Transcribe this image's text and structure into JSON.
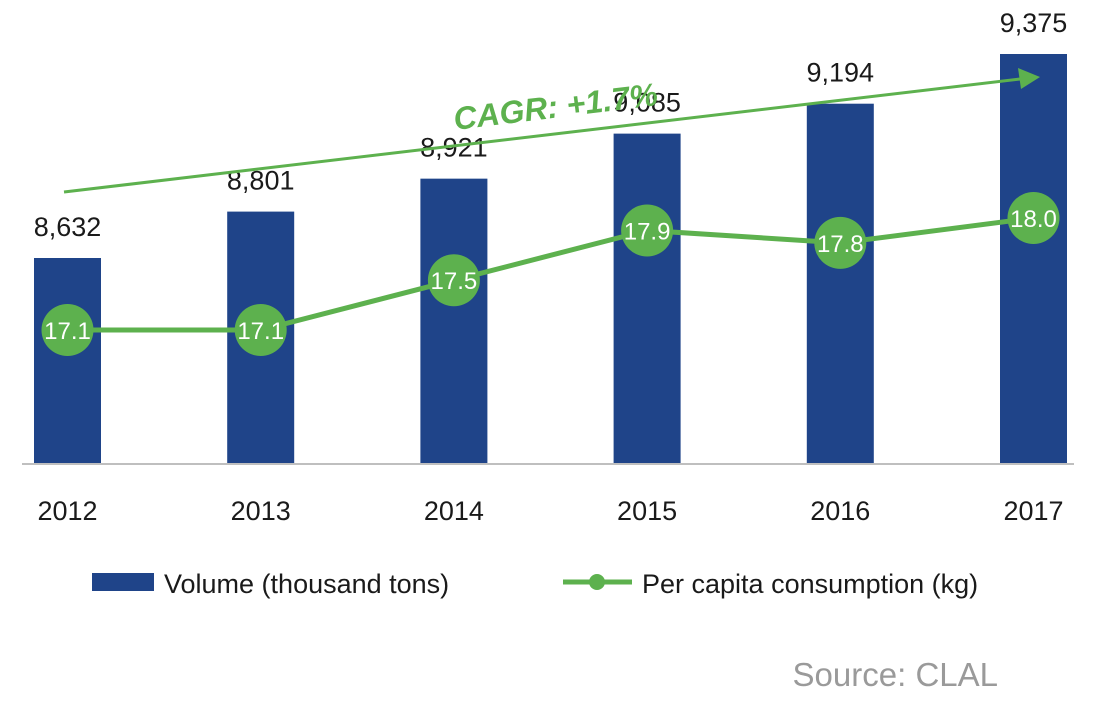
{
  "chart_data": {
    "type": "bar",
    "categories": [
      "2012",
      "2013",
      "2014",
      "2015",
      "2016",
      "2017"
    ],
    "series": [
      {
        "name": "Volume (thousand tons)",
        "type": "bar",
        "values": [
          8632,
          8801,
          8921,
          9085,
          9194,
          9375
        ],
        "labels": [
          "8,632",
          "8,801",
          "8,921",
          "9,085",
          "9,194",
          "9,375"
        ],
        "color": "#1f4489"
      },
      {
        "name": "Per capita consumption (kg)",
        "type": "line",
        "values": [
          17.1,
          17.1,
          17.5,
          17.9,
          17.8,
          18.0
        ],
        "labels": [
          "17.1",
          "17.1",
          "17.5",
          "17.9",
          "17.8",
          "18.0"
        ],
        "color": "#5db14e"
      }
    ],
    "annotation": "CAGR: +1.7%",
    "source": "Source: CLAL",
    "legend_position": "bottom",
    "grid": false
  },
  "colors": {
    "bar": "#1f4489",
    "line": "#5db14e",
    "axis": "#bfbfbf",
    "text": "#1a1a1a",
    "source": "#9a9a9a"
  }
}
